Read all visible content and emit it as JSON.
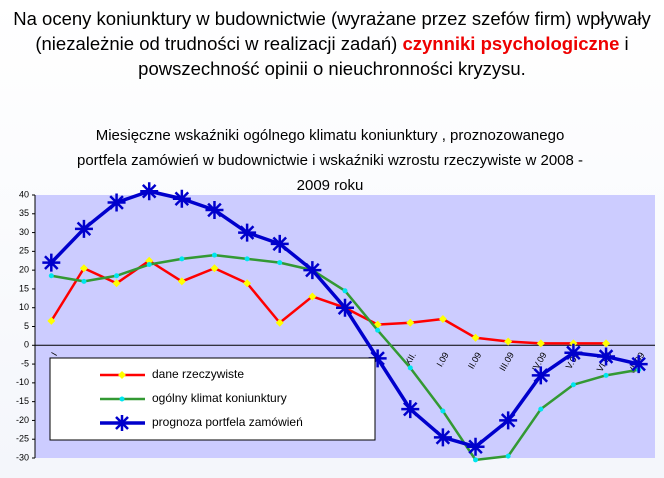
{
  "header": {
    "text_before": "Na oceny koniunktury w budownictwie (wyrażane przez szefów firm) wpływały (niezależnie od trudności w realizacji zadań)",
    "highlight": "czynniki psychologiczne",
    "text_after": "i powszechność opinii o nieuchronności kryzysu."
  },
  "chart_data": {
    "type": "line",
    "title": "Miesięczne wskaźniki ogólnego klimatu koniunktury , proznozowanego portfela zamówień  w budownictwie i wskaźniki wzrostu rzeczywiste w 2008 - 2009 roku",
    "categories": [
      "I",
      null,
      null,
      null,
      null,
      null,
      null,
      null,
      null,
      null,
      null,
      "XII.",
      "I.09",
      "II.09",
      "III.09",
      "IV.09",
      "V.09",
      "VI.09",
      "VII.09"
    ],
    "series": [
      {
        "name": "dane rzeczywiste",
        "color": "#ff0000",
        "marker": "diamond",
        "marker_color": "#ffff00",
        "values": [
          6.5,
          20.5,
          16.5,
          22.5,
          17,
          20.5,
          16.5,
          6,
          13,
          10,
          5.5,
          6,
          7,
          2,
          1,
          0.5,
          0.5,
          0.5,
          null
        ]
      },
      {
        "name": "ogólny klimat koniunktury",
        "color": "#339933",
        "marker": "dot",
        "marker_color": "#00e5ee",
        "values": [
          18.5,
          17,
          18.5,
          21.5,
          23,
          24,
          23,
          22,
          20,
          14.5,
          4,
          -6,
          -17.5,
          -30.5,
          -29.5,
          -17,
          -10.5,
          -8,
          -6.5
        ]
      },
      {
        "name": "prognoza portfela  zamówień",
        "color": "#0000cc",
        "marker": "star",
        "marker_color": "#0000cc",
        "values": [
          22,
          31,
          38,
          41,
          39,
          36,
          30,
          27,
          20,
          10,
          -3.5,
          -17,
          -24.5,
          -27,
          -20,
          -8,
          -2,
          -3,
          -5
        ]
      }
    ],
    "ylim": [
      -30,
      40
    ],
    "yticks": [
      -30,
      -25,
      -20,
      -15,
      -10,
      -5,
      0,
      5,
      10,
      15,
      20,
      25,
      30,
      35,
      40
    ],
    "plot_color": "#ccccff"
  }
}
